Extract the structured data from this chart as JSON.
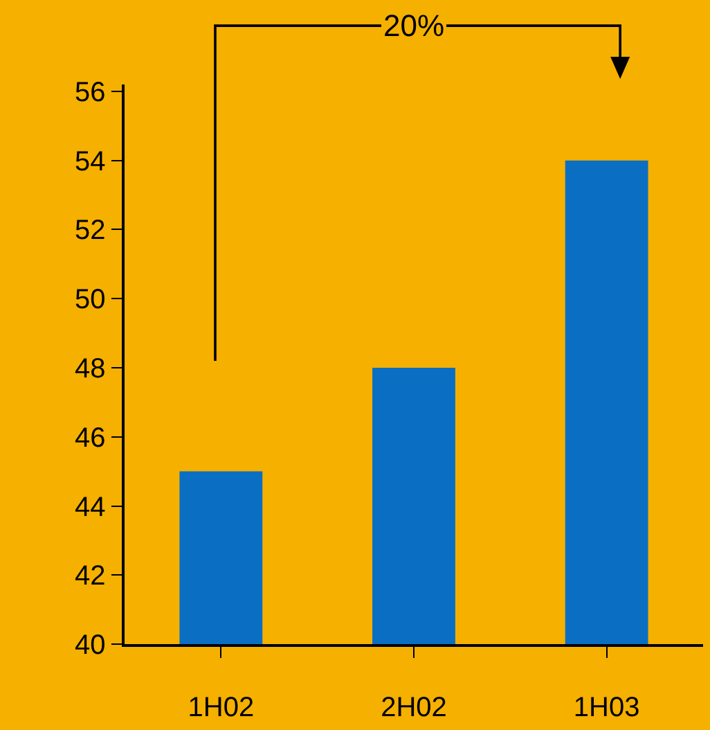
{
  "chart_data": {
    "type": "bar",
    "categories": [
      "1H02",
      "2H02",
      "1H03"
    ],
    "values": [
      45,
      48,
      54
    ],
    "color": "#0a6fc2",
    "ylim": [
      40,
      56.2
    ],
    "yticks": [
      40,
      42,
      44,
      46,
      48,
      50,
      52,
      54,
      56
    ],
    "grid": false,
    "legend": false,
    "annotations": [
      "20%"
    ]
  }
}
